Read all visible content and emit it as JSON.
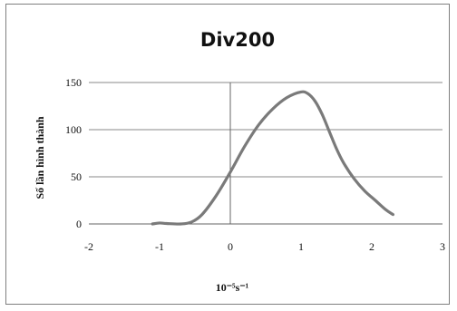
{
  "chart_data": {
    "type": "line",
    "title": "Div200",
    "xlabel": "10⁻⁵s⁻¹",
    "ylabel": "Số lần hình thành",
    "xlim": [
      -2,
      3
    ],
    "ylim": [
      0,
      150
    ],
    "x_ticks": [
      -2,
      -1,
      0,
      1,
      2,
      3
    ],
    "y_ticks": [
      0,
      50,
      100,
      150
    ],
    "grid": "horizontal",
    "legend": "none",
    "series": [
      {
        "color": "#7a7a7a",
        "points": [
          [
            -1.1,
            0
          ],
          [
            -1.0,
            1
          ],
          [
            -0.9,
            0.5
          ],
          [
            -0.7,
            0
          ],
          [
            -0.55,
            2
          ],
          [
            -0.4,
            10
          ],
          [
            -0.2,
            30
          ],
          [
            0,
            55
          ],
          [
            0.2,
            82
          ],
          [
            0.4,
            105
          ],
          [
            0.6,
            122
          ],
          [
            0.8,
            134
          ],
          [
            1.0,
            140
          ],
          [
            1.1,
            138
          ],
          [
            1.2,
            130
          ],
          [
            1.3,
            116
          ],
          [
            1.4,
            98
          ],
          [
            1.5,
            80
          ],
          [
            1.6,
            65
          ],
          [
            1.75,
            48
          ],
          [
            1.9,
            35
          ],
          [
            2.05,
            25
          ],
          [
            2.2,
            15
          ],
          [
            2.3,
            10
          ]
        ]
      }
    ]
  }
}
